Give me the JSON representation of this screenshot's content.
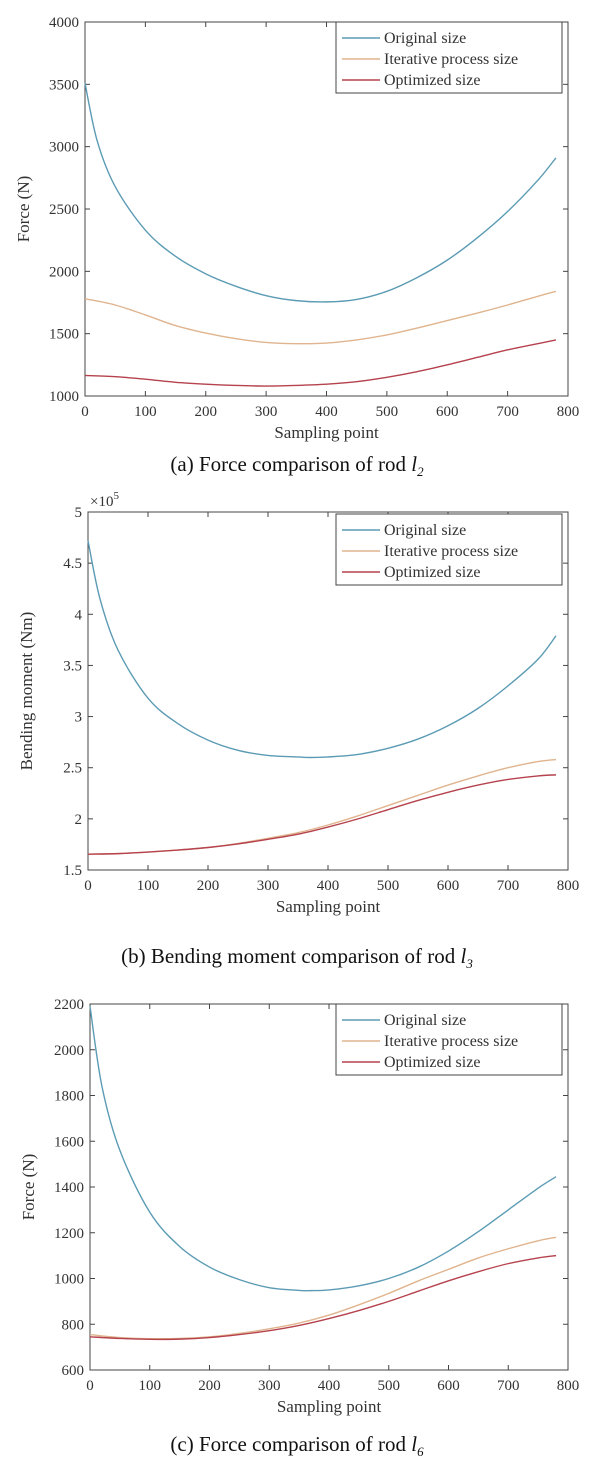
{
  "chart_data": [
    {
      "type": "line",
      "caption": {
        "prefix": "(a) Force comparison of rod ",
        "var": "l",
        "sub": "2"
      },
      "xlabel": "Sampling point",
      "ylabel": "Force (N)",
      "xlim": [
        0,
        800
      ],
      "ylim": [
        1000,
        4000
      ],
      "xticks": [
        0,
        100,
        200,
        300,
        400,
        500,
        600,
        700,
        800
      ],
      "yticks": [
        1000,
        1500,
        2000,
        2500,
        3000,
        3500,
        4000
      ],
      "exponent": "",
      "grid": false,
      "legend": "top-right",
      "series": [
        {
          "name": "Original size",
          "color": "#5b9bb4",
          "x": [
            0,
            20,
            50,
            100,
            150,
            200,
            250,
            300,
            350,
            400,
            450,
            500,
            550,
            600,
            650,
            700,
            750,
            780
          ],
          "y": [
            3510,
            3050,
            2680,
            2330,
            2120,
            1980,
            1880,
            1805,
            1765,
            1755,
            1775,
            1840,
            1950,
            2090,
            2270,
            2480,
            2730,
            2910
          ]
        },
        {
          "name": "Iterative process size",
          "color": "#e0b48e",
          "x": [
            0,
            50,
            100,
            150,
            200,
            250,
            300,
            350,
            400,
            450,
            500,
            550,
            600,
            650,
            700,
            750,
            780
          ],
          "y": [
            1780,
            1730,
            1650,
            1565,
            1505,
            1460,
            1430,
            1420,
            1425,
            1450,
            1490,
            1545,
            1605,
            1665,
            1730,
            1800,
            1840
          ]
        },
        {
          "name": "Optimized size",
          "color": "#b5424d",
          "x": [
            0,
            50,
            100,
            150,
            200,
            250,
            300,
            350,
            400,
            450,
            500,
            550,
            600,
            650,
            700,
            750,
            780
          ],
          "y": [
            1165,
            1155,
            1135,
            1110,
            1095,
            1085,
            1080,
            1085,
            1095,
            1115,
            1150,
            1195,
            1250,
            1310,
            1370,
            1420,
            1450
          ]
        }
      ]
    },
    {
      "type": "line",
      "caption": {
        "prefix": "(b) Bending moment comparison of rod ",
        "var": "l",
        "sub": "3"
      },
      "xlabel": "Sampling point",
      "ylabel": "Bending moment (Nm)",
      "xlim": [
        0,
        800
      ],
      "ylim": [
        1.5,
        5
      ],
      "xticks": [
        0,
        100,
        200,
        300,
        400,
        500,
        600,
        700,
        800
      ],
      "yticks": [
        1.5,
        2,
        2.5,
        3,
        3.5,
        4,
        4.5,
        5
      ],
      "exponent": "×10",
      "exponent_power": "5",
      "grid": false,
      "legend": "top-right",
      "series": [
        {
          "name": "Original size",
          "color": "#5b9bb4",
          "x": [
            0,
            20,
            50,
            100,
            150,
            200,
            250,
            300,
            350,
            370,
            400,
            450,
            500,
            550,
            600,
            650,
            700,
            750,
            780
          ],
          "y": [
            4.72,
            4.15,
            3.65,
            3.18,
            2.93,
            2.77,
            2.67,
            2.62,
            2.605,
            2.6,
            2.605,
            2.63,
            2.69,
            2.78,
            2.91,
            3.08,
            3.3,
            3.56,
            3.79
          ]
        },
        {
          "name": "Iterative process size",
          "color": "#e0b48e",
          "x": [
            0,
            50,
            100,
            150,
            200,
            250,
            300,
            350,
            400,
            450,
            500,
            550,
            600,
            650,
            700,
            750,
            780
          ],
          "y": [
            1.655,
            1.66,
            1.675,
            1.695,
            1.72,
            1.76,
            1.81,
            1.865,
            1.94,
            2.03,
            2.13,
            2.23,
            2.33,
            2.42,
            2.5,
            2.56,
            2.58
          ]
        },
        {
          "name": "Optimized size",
          "color": "#b5424d",
          "x": [
            0,
            50,
            100,
            150,
            200,
            250,
            300,
            350,
            400,
            450,
            500,
            550,
            600,
            650,
            700,
            750,
            780
          ],
          "y": [
            1.655,
            1.66,
            1.675,
            1.695,
            1.72,
            1.755,
            1.8,
            1.85,
            1.92,
            2.0,
            2.09,
            2.18,
            2.26,
            2.33,
            2.385,
            2.42,
            2.43
          ]
        }
      ]
    },
    {
      "type": "line",
      "caption": {
        "prefix": "(c) Force comparison of rod ",
        "var": "l",
        "sub": "6"
      },
      "xlabel": "Sampling point",
      "ylabel": "Force (N)",
      "xlim": [
        0,
        800
      ],
      "ylim": [
        600,
        2200
      ],
      "xticks": [
        0,
        100,
        200,
        300,
        400,
        500,
        600,
        700,
        800
      ],
      "yticks": [
        600,
        800,
        1000,
        1200,
        1400,
        1600,
        1800,
        2000,
        2200
      ],
      "exponent": "",
      "grid": false,
      "legend": "top-right",
      "series": [
        {
          "name": "Original size",
          "color": "#5b9bb4",
          "x": [
            0,
            20,
            50,
            100,
            150,
            200,
            250,
            300,
            350,
            370,
            400,
            450,
            500,
            550,
            600,
            650,
            700,
            750,
            780
          ],
          "y": [
            2190,
            1840,
            1560,
            1290,
            1140,
            1050,
            995,
            960,
            948,
            947,
            950,
            968,
            1000,
            1050,
            1120,
            1205,
            1300,
            1395,
            1445
          ]
        },
        {
          "name": "Iterative process size",
          "color": "#e0b48e",
          "x": [
            0,
            50,
            100,
            150,
            200,
            250,
            300,
            350,
            400,
            450,
            500,
            550,
            600,
            650,
            700,
            750,
            780
          ],
          "y": [
            755,
            742,
            737,
            738,
            745,
            760,
            780,
            805,
            840,
            885,
            935,
            990,
            1040,
            1090,
            1130,
            1165,
            1180
          ]
        },
        {
          "name": "Optimized size",
          "color": "#b5424d",
          "x": [
            0,
            50,
            100,
            150,
            200,
            250,
            300,
            350,
            400,
            450,
            500,
            550,
            600,
            650,
            700,
            750,
            780
          ],
          "y": [
            745,
            738,
            734,
            735,
            742,
            755,
            772,
            795,
            825,
            860,
            900,
            945,
            990,
            1030,
            1065,
            1090,
            1100
          ]
        }
      ]
    }
  ]
}
